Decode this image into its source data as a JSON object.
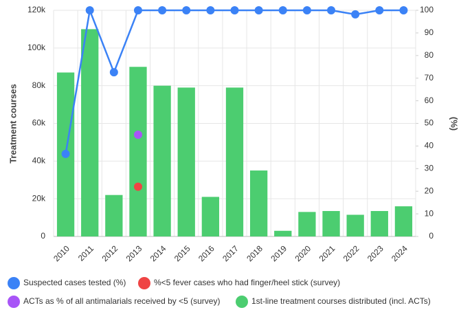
{
  "chart_data": {
    "type": "bar",
    "categories": [
      "2010",
      "2011",
      "2012",
      "2013",
      "2014",
      "2015",
      "2016",
      "2017",
      "2018",
      "2019",
      "2020",
      "2021",
      "2022",
      "2023",
      "2024"
    ],
    "ylabel": "Treatment courses",
    "y2label": "(%)",
    "ylim": [
      0,
      120000
    ],
    "yticks": [
      0,
      {
        "value": 20000,
        "label": "20k"
      },
      {
        "value": 40000,
        "label": "40k"
      },
      {
        "value": 60000,
        "label": "60k"
      },
      {
        "value": 80000,
        "label": "80k"
      },
      {
        "value": 100000,
        "label": "100k"
      },
      {
        "value": 120000,
        "label": "120k"
      }
    ],
    "y2lim": [
      0,
      100
    ],
    "y2ticks": [
      0,
      10,
      20,
      30,
      40,
      50,
      60,
      70,
      80,
      90,
      100
    ],
    "grid": true,
    "series": [
      {
        "name": "Suspected cases tested (%)",
        "type": "line",
        "axis": "y2",
        "color": "#3b82f6",
        "values": [
          36.5,
          100,
          72.6,
          100,
          100,
          100,
          100,
          100,
          100,
          100,
          100,
          100,
          98.2,
          100,
          100
        ]
      },
      {
        "name": "%<5 fever cases who had finger/heel stick (survey)",
        "type": "scatter",
        "axis": "y2",
        "color": "#ef4444",
        "values": [
          null,
          null,
          null,
          22,
          null,
          null,
          null,
          null,
          null,
          null,
          null,
          null,
          null,
          null,
          null
        ]
      },
      {
        "name": "ACTs as % of all antimalarials received by <5 (survey)",
        "type": "scatter",
        "axis": "y2",
        "color": "#a855f7",
        "values": [
          null,
          null,
          null,
          45,
          null,
          null,
          null,
          null,
          null,
          null,
          null,
          null,
          null,
          null,
          null
        ]
      },
      {
        "name": "1st-line treatment courses distributed (incl. ACTs)",
        "type": "bar",
        "axis": "y",
        "color": "#4ccd70",
        "values": [
          87000,
          110000,
          22000,
          90000,
          80000,
          79000,
          21000,
          79000,
          35000,
          3000,
          13000,
          13500,
          11500,
          13500,
          16000
        ]
      }
    ]
  }
}
